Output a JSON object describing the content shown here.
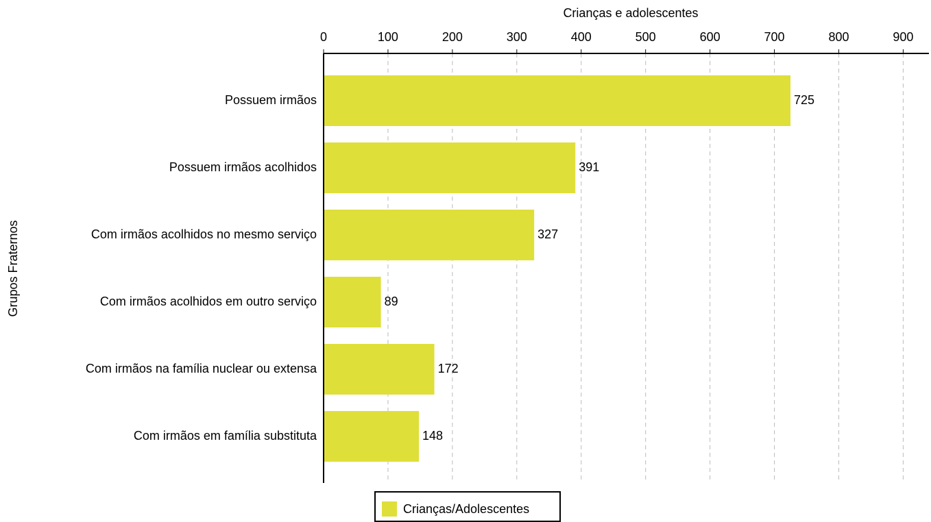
{
  "chart_data": {
    "type": "bar",
    "orientation": "horizontal",
    "x_label": "Crianças e adolescentes",
    "y_label": "Grupos Fraternos",
    "categories": [
      "Possuem irmãos",
      "Possuem irmãos acolhidos",
      "Com irmãos acolhidos no mesmo serviço",
      "Com irmãos acolhidos em outro serviço",
      "Com irmãos na família nuclear ou extensa",
      "Com irmãos em família substituta"
    ],
    "series": [
      {
        "name": "Crianças/Adolescentes",
        "color": "#dfdf3a",
        "values": [
          725,
          391,
          327,
          89,
          172,
          148
        ]
      }
    ],
    "xlim": [
      0,
      940
    ],
    "xticks": [
      0,
      100,
      200,
      300,
      400,
      500,
      600,
      700,
      800,
      900
    ],
    "grid": true,
    "legend": "bottom"
  }
}
